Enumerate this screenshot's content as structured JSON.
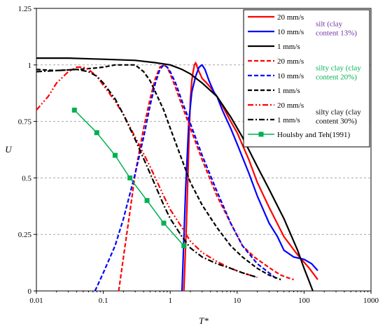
{
  "chart_data": {
    "type": "line",
    "xlabel": "T*",
    "ylabel": "U",
    "x_scale": "log",
    "xlim": [
      0.01,
      1000
    ],
    "ylim": [
      0,
      1.25
    ],
    "x_ticks": [
      "0.01",
      "0.1",
      "1",
      "10",
      "100",
      "1000"
    ],
    "y_ticks": [
      "0",
      "0.25",
      "0.5",
      "0.75",
      "1",
      "1.25"
    ],
    "grid": "horizontal dashed",
    "legend_position": "top-right",
    "colors": {
      "silt": "#ff0000",
      "silty_clay_20": "#0000ff",
      "black": "#000000",
      "houlsby": "#00b050",
      "purple": "#7030a0",
      "green_text": "#00b050"
    },
    "legend": [
      {
        "label": "20 mm/s",
        "color": "#ff0000",
        "style": "solid"
      },
      {
        "label": "10 mm/s",
        "color": "#0000ff",
        "style": "solid"
      },
      {
        "label": "1 mm/s",
        "color": "#000000",
        "style": "solid"
      },
      {
        "label": "20 mm/s",
        "color": "#ff0000",
        "style": "dash"
      },
      {
        "label": "10 mm/s",
        "color": "#0000ff",
        "style": "dash"
      },
      {
        "label": "1 mm/s",
        "color": "#000000",
        "style": "dash"
      },
      {
        "label": "20 mm/s",
        "color": "#ff0000",
        "style": "dashdotdot"
      },
      {
        "label": "1 mm/s",
        "color": "#000000",
        "style": "dashdot"
      },
      {
        "label": "Houlsby and Teh(1991)",
        "color": "#00b050",
        "style": "marker"
      }
    ],
    "legend_groups": [
      {
        "lines": [
          "silt (clay",
          "content 13%)"
        ],
        "color": "#7030a0"
      },
      {
        "lines": [
          "silty clay (clay",
          "content 20%)"
        ],
        "color": "#00b050"
      },
      {
        "lines": [
          "silty clay (clay",
          "content 30%)"
        ],
        "color": "#000000"
      }
    ],
    "series": [
      {
        "color": "#ff0000",
        "style": "solid",
        "x": [
          1.6,
          1.75,
          1.9,
          2.0,
          2.1,
          2.2,
          2.3,
          2.4,
          2.6,
          3.0,
          3.5,
          4.0,
          5.0,
          6.0,
          8.0,
          10,
          15,
          20,
          30,
          50,
          80,
          120,
          160
        ],
        "y": [
          0.0,
          0.3,
          0.65,
          0.85,
          0.93,
          0.97,
          1.0,
          1.01,
          0.98,
          0.94,
          0.92,
          0.9,
          0.86,
          0.82,
          0.75,
          0.7,
          0.58,
          0.48,
          0.37,
          0.24,
          0.16,
          0.1,
          0.05
        ]
      },
      {
        "color": "#0000ff",
        "style": "solid",
        "x": [
          1.5,
          1.7,
          1.9,
          2.1,
          2.4,
          2.7,
          3.0,
          3.3,
          3.8,
          4.5,
          5.0,
          6.0,
          8.0,
          10,
          15,
          20,
          30,
          40,
          50,
          70,
          100,
          130,
          160
        ],
        "y": [
          0.0,
          0.45,
          0.75,
          0.88,
          0.95,
          0.99,
          1.0,
          0.98,
          0.93,
          0.88,
          0.86,
          0.8,
          0.72,
          0.65,
          0.52,
          0.42,
          0.3,
          0.24,
          0.18,
          0.15,
          0.14,
          0.12,
          0.09
        ]
      },
      {
        "color": "#000000",
        "style": "solid",
        "x": [
          0.01,
          0.03,
          0.1,
          0.3,
          0.6,
          1.0,
          1.5,
          2.0,
          3.0,
          5.0,
          8.0,
          12,
          20,
          30,
          50,
          80,
          100,
          120,
          135
        ],
        "y": [
          1.03,
          1.03,
          1.025,
          1.02,
          1.01,
          1.0,
          0.98,
          0.96,
          0.92,
          0.86,
          0.77,
          0.68,
          0.55,
          0.45,
          0.32,
          0.18,
          0.1,
          0.04,
          0.0
        ]
      },
      {
        "color": "#ff0000",
        "style": "dash",
        "x": [
          0.17,
          0.2,
          0.25,
          0.3,
          0.4,
          0.5,
          0.6,
          0.7,
          0.8,
          0.9,
          1.0,
          1.2,
          1.5,
          2.0,
          3.0,
          5.0,
          8.0,
          12,
          18,
          25,
          35,
          45,
          55,
          70
        ],
        "y": [
          0.0,
          0.15,
          0.35,
          0.52,
          0.72,
          0.85,
          0.94,
          0.99,
          1.0,
          0.99,
          0.96,
          0.9,
          0.82,
          0.72,
          0.58,
          0.42,
          0.3,
          0.2,
          0.15,
          0.12,
          0.09,
          0.07,
          0.06,
          0.05
        ]
      },
      {
        "color": "#0000ff",
        "style": "dash",
        "x": [
          0.075,
          0.1,
          0.15,
          0.2,
          0.3,
          0.4,
          0.5,
          0.6,
          0.7,
          0.8,
          0.9,
          1.0,
          1.2,
          1.5,
          2.0,
          3.0,
          5.0,
          8.0,
          12,
          20,
          30,
          40
        ],
        "y": [
          0.0,
          0.08,
          0.2,
          0.32,
          0.52,
          0.68,
          0.82,
          0.92,
          0.98,
          1.0,
          0.99,
          0.97,
          0.92,
          0.84,
          0.74,
          0.6,
          0.44,
          0.3,
          0.2,
          0.12,
          0.08,
          0.05
        ]
      },
      {
        "color": "#000000",
        "style": "dash",
        "x": [
          0.01,
          0.02,
          0.04,
          0.07,
          0.1,
          0.15,
          0.2,
          0.3,
          0.4,
          0.5,
          0.6,
          0.8,
          1.0,
          1.5,
          2.0,
          3.0,
          5.0,
          8.0,
          12,
          20,
          30,
          45
        ],
        "y": [
          0.98,
          0.975,
          0.98,
          0.985,
          0.99,
          1.0,
          1.0,
          1.0,
          0.97,
          0.93,
          0.88,
          0.8,
          0.72,
          0.58,
          0.48,
          0.38,
          0.28,
          0.2,
          0.15,
          0.1,
          0.07,
          0.05
        ]
      },
      {
        "color": "#ff0000",
        "style": "dashdotdot",
        "x": [
          0.01,
          0.015,
          0.02,
          0.03,
          0.04,
          0.05,
          0.06,
          0.08,
          0.1,
          0.15,
          0.2,
          0.3,
          0.5,
          0.8,
          1.0,
          1.5,
          2.0,
          3.0,
          5.0,
          8.0,
          12,
          20
        ],
        "y": [
          0.8,
          0.86,
          0.92,
          0.97,
          0.99,
          0.99,
          0.98,
          0.95,
          0.91,
          0.84,
          0.78,
          0.68,
          0.55,
          0.42,
          0.36,
          0.28,
          0.22,
          0.17,
          0.13,
          0.1,
          0.08,
          0.06
        ]
      },
      {
        "color": "#000000",
        "style": "dashdot",
        "x": [
          0.01,
          0.02,
          0.04,
          0.06,
          0.08,
          0.1,
          0.15,
          0.2,
          0.3,
          0.5,
          0.8,
          1.0,
          1.5,
          2.0,
          3.0,
          5.0,
          8.0,
          12,
          20
        ],
        "y": [
          0.97,
          0.975,
          0.98,
          0.97,
          0.95,
          0.92,
          0.85,
          0.78,
          0.67,
          0.52,
          0.38,
          0.32,
          0.24,
          0.19,
          0.15,
          0.12,
          0.1,
          0.08,
          0.06
        ]
      },
      {
        "color": "#00b050",
        "style": "marker",
        "x": [
          0.037,
          0.08,
          0.15,
          0.25,
          0.45,
          0.8,
          1.6
        ],
        "y": [
          0.8,
          0.7,
          0.6,
          0.5,
          0.4,
          0.3,
          0.2
        ]
      }
    ]
  }
}
